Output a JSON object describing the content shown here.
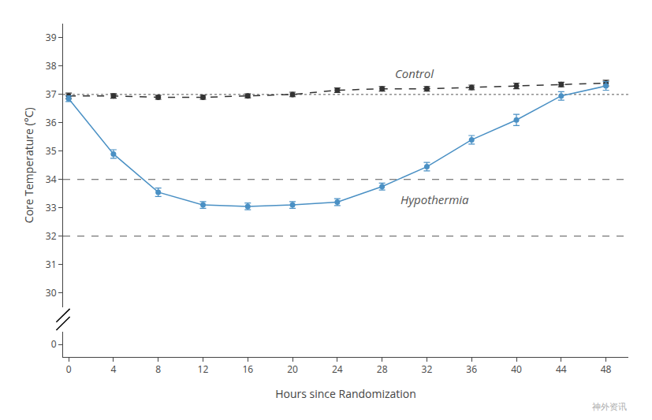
{
  "chart_data": {
    "type": "line",
    "x": [
      0,
      4,
      8,
      12,
      16,
      20,
      24,
      28,
      32,
      36,
      40,
      44,
      48
    ],
    "series": [
      {
        "color": "#333333",
        "line_style": "dashed",
        "marker": "circle",
        "values": [
          36.95,
          36.95,
          36.9,
          36.9,
          36.95,
          37.0,
          37.15,
          37.2,
          37.2,
          37.25,
          37.3,
          37.35,
          37.4
        ],
        "errors": [
          0.1,
          0.08,
          0.07,
          0.07,
          0.07,
          0.08,
          0.08,
          0.08,
          0.08,
          0.08,
          0.1,
          0.08,
          0.1
        ]
      },
      {
        "color": "#4a90c4",
        "line_style": "solid",
        "marker": "circle",
        "values": [
          36.85,
          34.9,
          33.55,
          33.1,
          33.05,
          33.1,
          33.2,
          33.75,
          34.45,
          35.4,
          36.1,
          36.95,
          37.3
        ],
        "errors": [
          0.1,
          0.15,
          0.15,
          0.12,
          0.12,
          0.12,
          0.12,
          0.12,
          0.15,
          0.15,
          0.2,
          0.15,
          0.15
        ]
      }
    ],
    "x_label": "Hours since Randomization",
    "y_label": "Core Temperature (°C)",
    "xlim": [
      -0.5,
      50
    ],
    "xticks": [
      0,
      4,
      8,
      12,
      16,
      20,
      24,
      28,
      32,
      36,
      40,
      44,
      48
    ],
    "ylim": [
      29.5,
      39.5
    ],
    "yticks": [
      30,
      31,
      32,
      33,
      34,
      35,
      36,
      37,
      38,
      39
    ],
    "axis_break": {
      "ylim": [
        -0.5,
        0.5
      ],
      "yticks": [
        0
      ]
    },
    "reference_lines": [
      {
        "y": 37.0,
        "line_style": "dotted"
      },
      {
        "y": 34.0,
        "line_style": "dashed"
      },
      {
        "y": 32.0,
        "line_style": "dashed"
      }
    ],
    "annotations": [
      {
        "text": "Control",
        "x": 29.0,
        "y": 37.75
      },
      {
        "text": "Hypothermia",
        "x": 29.5,
        "y": 33.3
      }
    ],
    "watermark": "神外资讯",
    "grid": false
  }
}
